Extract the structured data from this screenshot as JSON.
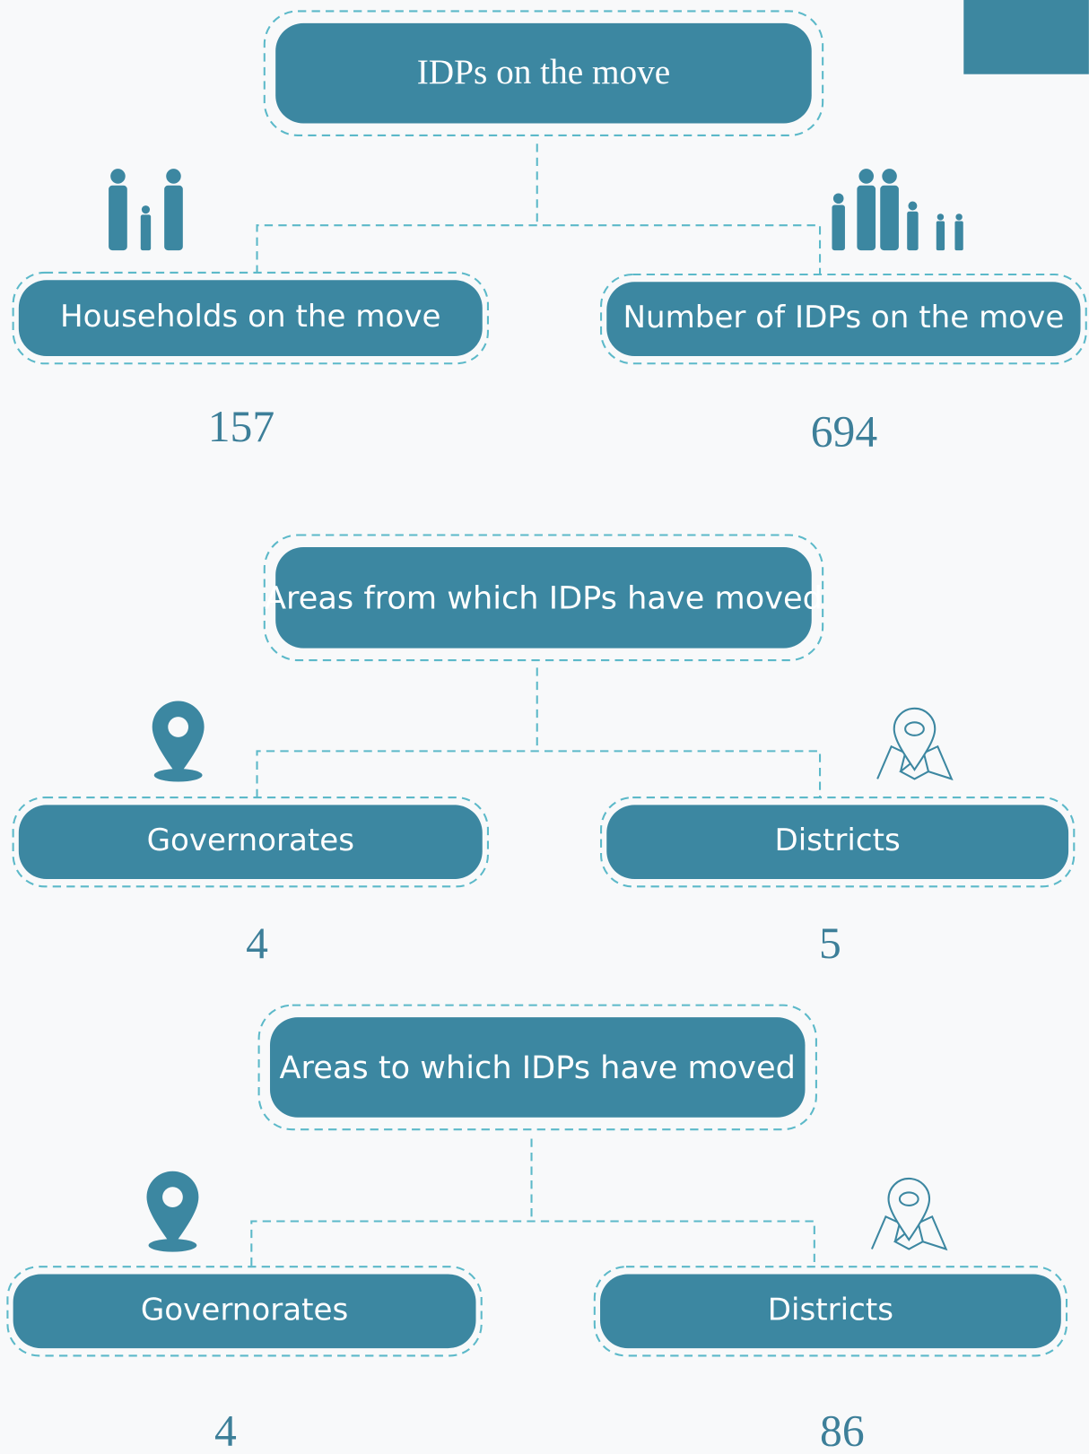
{
  "sections": [
    {
      "title": "IDPs on the move",
      "items": [
        {
          "label": "Households on the move",
          "value": 157
        },
        {
          "label": "Number of IDPs on the move",
          "value": 694
        }
      ]
    },
    {
      "title": "Areas from which IDPs have moved",
      "items": [
        {
          "label": "Governorates",
          "value": 4
        },
        {
          "label": "Districts",
          "value": 5
        }
      ]
    },
    {
      "title": "Areas to which IDPs have moved",
      "items": [
        {
          "label": "Governorates",
          "value": 4
        },
        {
          "label": "Districts",
          "value": 86
        }
      ]
    }
  ]
}
